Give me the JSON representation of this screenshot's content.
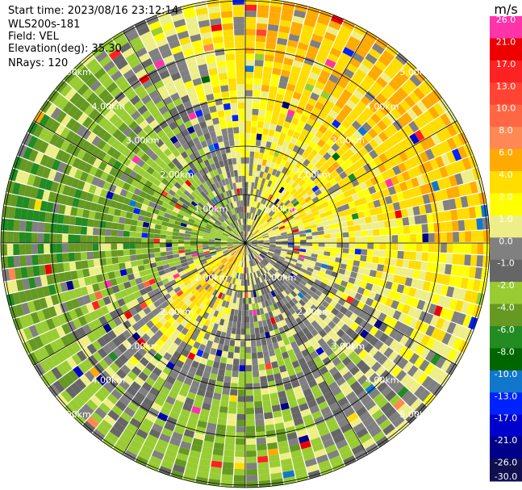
{
  "info": {
    "start_time": "Start time: 2023/08/16 23:12:14",
    "station": "WLS200s-181",
    "field": "Field: VEL",
    "elevation": "Elevation(deg): 35.30",
    "nrays": "NRays: 120"
  },
  "chart_data": {
    "type": "heatmap",
    "projection": "polar-ppi",
    "field": "VEL",
    "units": "m/s",
    "n_rays": 120,
    "max_range_km": 6.0,
    "range_ring_labels": [
      "1.00km",
      "2.00km",
      "3.00km",
      "4.00km",
      "5.00km"
    ],
    "radial_spokes_deg": [
      0,
      30,
      60,
      90,
      120,
      150,
      180,
      210,
      240,
      270,
      300,
      330
    ],
    "colorbar": {
      "label": "m/s",
      "ticks": [
        "26.0",
        "21.0",
        "17.0",
        "13.0",
        "10.0",
        "8.0",
        "6.0",
        "4.0",
        "2.0",
        "1.0",
        "0.0",
        "-1.0",
        "-2.0",
        "-4.0",
        "-6.0",
        "-8.0",
        "-10.0",
        "-13.0",
        "-17.0",
        "-21.0",
        "-26.0",
        "-30.0"
      ],
      "colors": [
        "#ff33aa",
        "#ee0000",
        "#ff2222",
        "#ff4433",
        "#ff6644",
        "#ff8855",
        "#ffaa00",
        "#ffdd00",
        "#ffff00",
        "#eeee88",
        "#808080",
        "#666666",
        "#99cc33",
        "#669922",
        "#228b22",
        "#006600",
        "#1177cc",
        "#0022ff",
        "#0000cc",
        "#000088",
        "#1a1a66",
        "#101050"
      ]
    },
    "velocity_pattern": {
      "description_sectors": [
        {
          "azimuth_deg": 45,
          "near_m_s": 2.0,
          "far_m_s": 4.0
        },
        {
          "azimuth_deg": 90,
          "near_m_s": -1.0,
          "far_m_s": 3.0
        },
        {
          "azimuth_deg": 180,
          "near_m_s": 0.0,
          "far_m_s": -4.0
        },
        {
          "azimuth_deg": 225,
          "near_m_s": 6.0,
          "far_m_s": -2.0
        },
        {
          "azimuth_deg": 270,
          "near_m_s": -4.0,
          "far_m_s": -6.0
        },
        {
          "azimuth_deg": 315,
          "near_m_s": -2.0,
          "far_m_s": -4.0
        },
        {
          "azimuth_deg": 0,
          "near_m_s": -2.0,
          "far_m_s": 4.0
        }
      ]
    }
  }
}
